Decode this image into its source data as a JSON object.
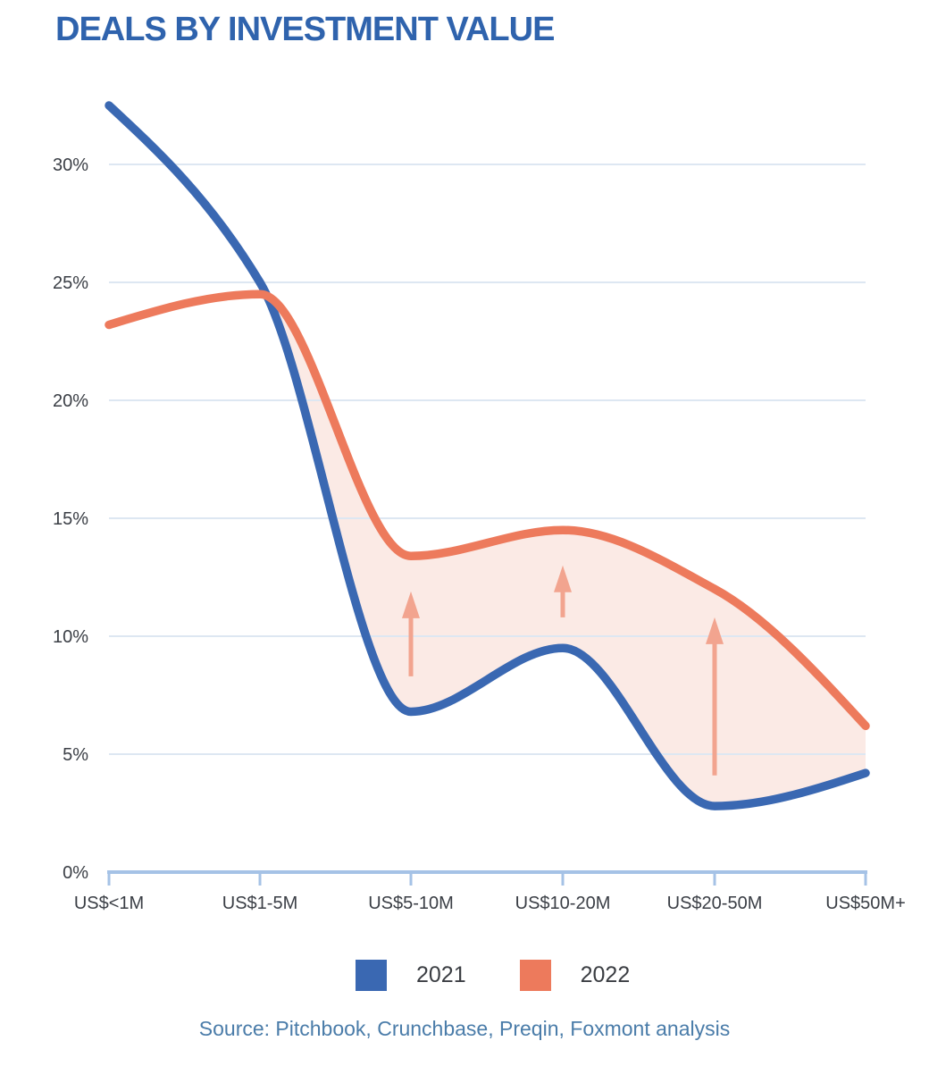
{
  "header": {
    "title": "DEALS BY INVESTMENT VALUE"
  },
  "legend": {
    "items": [
      {
        "label": "2021",
        "color": "#3A68B2"
      },
      {
        "label": "2022",
        "color": "#ED7A5C"
      }
    ]
  },
  "footer": {
    "source": "Source: Pitchbook, Crunchbase, Preqin, Foxmont analysis"
  },
  "colors": {
    "title": "#2F63AD",
    "series_2021": "#3A68B2",
    "series_2022": "#ED7A5C",
    "fill_between": "#FBEAE5",
    "arrow": "#F2A48F",
    "gridline": "#DDE7F2",
    "axis": "#A5C2E6",
    "tick_text": "#3A3E45",
    "source_text": "#4A7CA9"
  },
  "chart_data": {
    "type": "line",
    "title": "DEALS BY INVESTMENT VALUE",
    "categories": [
      "US$<1M",
      "US$1-5M",
      "US$5-10M",
      "US$10-20M",
      "US$20-50M",
      "US$50M+"
    ],
    "series": [
      {
        "name": "2021",
        "color": "#3A68B2",
        "values": [
          32.5,
          25.0,
          6.8,
          9.5,
          2.8,
          4.2
        ]
      },
      {
        "name": "2022",
        "color": "#ED7A5C",
        "values": [
          23.2,
          24.5,
          13.4,
          14.5,
          12.0,
          6.2
        ]
      }
    ],
    "fill_between": {
      "upper": "2022",
      "lower": "2021",
      "color": "#FBEAE5",
      "start_category_index": 1
    },
    "arrows": [
      {
        "category_index": 2,
        "from_pct": 8.3,
        "to_pct": 11.9
      },
      {
        "category_index": 3,
        "from_pct": 10.8,
        "to_pct": 13.0
      },
      {
        "category_index": 4,
        "from_pct": 4.1,
        "to_pct": 10.8
      }
    ],
    "y_tick_values": [
      0,
      5,
      10,
      15,
      20,
      25,
      30
    ],
    "y_tick_labels": [
      "0%",
      "5%",
      "10%",
      "15%",
      "20%",
      "25%",
      "30%"
    ],
    "ylim": [
      0,
      33
    ],
    "xlabel": "",
    "ylabel": "",
    "grid": "horizontal",
    "legend_position": "bottom",
    "source": "Source: Pitchbook, Crunchbase, Preqin, Foxmont analysis"
  }
}
